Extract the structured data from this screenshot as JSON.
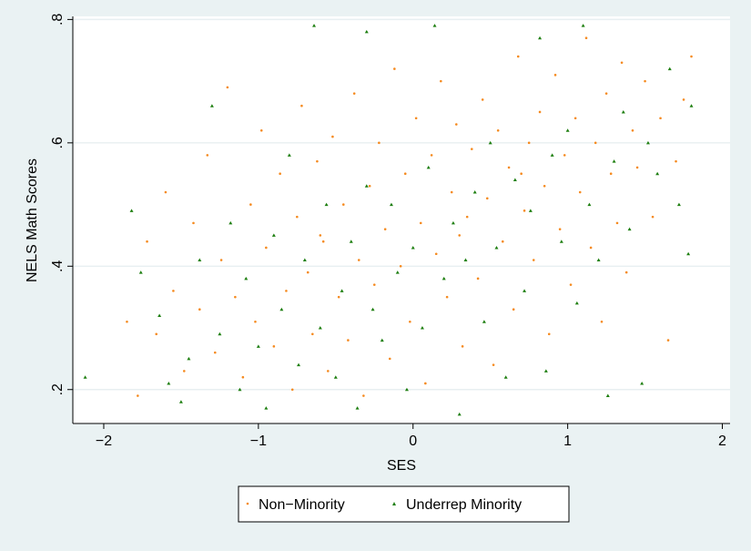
{
  "chart_data": {
    "type": "scatter",
    "xlabel": "SES",
    "ylabel": "NELS Math Scores",
    "xlim": [
      -2.2,
      2.05
    ],
    "ylim": [
      0.145,
      0.805
    ],
    "x_ticks": [
      -2,
      -1,
      0,
      1,
      2
    ],
    "x_tick_labels": [
      "−2",
      "−1",
      "0",
      "1",
      "2"
    ],
    "y_ticks": [
      0.2,
      0.4,
      0.6,
      0.8
    ],
    "y_tick_labels": [
      ".2",
      ".4",
      ".6",
      ".8"
    ],
    "grid": "horizontal",
    "legend_position": "bottom",
    "series": [
      {
        "name": "Non−Minority",
        "color": "#f58a1f",
        "marker": "dot",
        "points": [
          [
            -1.85,
            0.31
          ],
          [
            -1.78,
            0.19
          ],
          [
            -1.72,
            0.44
          ],
          [
            -1.66,
            0.29
          ],
          [
            -1.6,
            0.52
          ],
          [
            -1.55,
            0.36
          ],
          [
            -1.48,
            0.23
          ],
          [
            -1.42,
            0.47
          ],
          [
            -1.38,
            0.33
          ],
          [
            -1.33,
            0.58
          ],
          [
            -1.28,
            0.26
          ],
          [
            -1.24,
            0.41
          ],
          [
            -1.2,
            0.69
          ],
          [
            -1.15,
            0.35
          ],
          [
            -1.1,
            0.22
          ],
          [
            -1.05,
            0.5
          ],
          [
            -1.02,
            0.31
          ],
          [
            -0.98,
            0.62
          ],
          [
            -0.95,
            0.43
          ],
          [
            -0.9,
            0.27
          ],
          [
            -0.86,
            0.55
          ],
          [
            -0.82,
            0.36
          ],
          [
            -0.78,
            0.2
          ],
          [
            -0.75,
            0.48
          ],
          [
            -0.72,
            0.66
          ],
          [
            -0.68,
            0.39
          ],
          [
            -0.65,
            0.29
          ],
          [
            -0.62,
            0.57
          ],
          [
            -0.58,
            0.44
          ],
          [
            -0.55,
            0.23
          ],
          [
            -0.52,
            0.61
          ],
          [
            -0.48,
            0.35
          ],
          [
            -0.45,
            0.5
          ],
          [
            -0.42,
            0.28
          ],
          [
            -0.38,
            0.68
          ],
          [
            -0.35,
            0.41
          ],
          [
            -0.32,
            0.19
          ],
          [
            -0.28,
            0.53
          ],
          [
            -0.25,
            0.37
          ],
          [
            -0.22,
            0.6
          ],
          [
            -0.18,
            0.46
          ],
          [
            -0.15,
            0.25
          ],
          [
            -0.12,
            0.72
          ],
          [
            -0.08,
            0.4
          ],
          [
            -0.05,
            0.55
          ],
          [
            -0.02,
            0.31
          ],
          [
            0.02,
            0.64
          ],
          [
            0.05,
            0.47
          ],
          [
            0.08,
            0.21
          ],
          [
            0.12,
            0.58
          ],
          [
            0.15,
            0.42
          ],
          [
            0.18,
            0.7
          ],
          [
            0.22,
            0.35
          ],
          [
            0.25,
            0.52
          ],
          [
            0.28,
            0.63
          ],
          [
            0.32,
            0.27
          ],
          [
            0.35,
            0.48
          ],
          [
            0.38,
            0.59
          ],
          [
            0.42,
            0.38
          ],
          [
            0.45,
            0.67
          ],
          [
            0.48,
            0.51
          ],
          [
            0.52,
            0.24
          ],
          [
            0.55,
            0.62
          ],
          [
            0.58,
            0.44
          ],
          [
            0.62,
            0.56
          ],
          [
            0.65,
            0.33
          ],
          [
            0.68,
            0.74
          ],
          [
            0.72,
            0.49
          ],
          [
            0.75,
            0.6
          ],
          [
            0.78,
            0.41
          ],
          [
            0.82,
            0.65
          ],
          [
            0.85,
            0.53
          ],
          [
            0.88,
            0.29
          ],
          [
            0.92,
            0.71
          ],
          [
            0.95,
            0.46
          ],
          [
            0.98,
            0.58
          ],
          [
            1.02,
            0.37
          ],
          [
            1.05,
            0.64
          ],
          [
            1.08,
            0.52
          ],
          [
            1.12,
            0.77
          ],
          [
            1.15,
            0.43
          ],
          [
            1.18,
            0.6
          ],
          [
            1.22,
            0.31
          ],
          [
            1.25,
            0.68
          ],
          [
            1.28,
            0.55
          ],
          [
            1.32,
            0.47
          ],
          [
            1.35,
            0.73
          ],
          [
            1.38,
            0.39
          ],
          [
            1.42,
            0.62
          ],
          [
            1.45,
            0.56
          ],
          [
            1.5,
            0.7
          ],
          [
            1.55,
            0.48
          ],
          [
            1.6,
            0.64
          ],
          [
            1.65,
            0.28
          ],
          [
            1.7,
            0.57
          ],
          [
            1.75,
            0.67
          ],
          [
            1.8,
            0.74
          ],
          [
            -0.6,
            0.45
          ],
          [
            0.3,
            0.45
          ],
          [
            0.7,
            0.55
          ]
        ]
      },
      {
        "name": "Underrep Minority",
        "color": "#1e7f10",
        "marker": "triangle",
        "points": [
          [
            -2.12,
            0.22
          ],
          [
            -1.82,
            0.49
          ],
          [
            -1.76,
            0.39
          ],
          [
            -1.64,
            0.32
          ],
          [
            -1.58,
            0.21
          ],
          [
            -1.5,
            0.18
          ],
          [
            -1.45,
            0.25
          ],
          [
            -1.38,
            0.41
          ],
          [
            -1.3,
            0.66
          ],
          [
            -1.25,
            0.29
          ],
          [
            -1.18,
            0.47
          ],
          [
            -1.12,
            0.2
          ],
          [
            -1.08,
            0.38
          ],
          [
            -1.0,
            0.27
          ],
          [
            -0.95,
            0.17
          ],
          [
            -0.9,
            0.45
          ],
          [
            -0.85,
            0.33
          ],
          [
            -0.8,
            0.58
          ],
          [
            -0.74,
            0.24
          ],
          [
            -0.7,
            0.41
          ],
          [
            -0.64,
            0.79
          ],
          [
            -0.6,
            0.3
          ],
          [
            -0.56,
            0.5
          ],
          [
            -0.5,
            0.22
          ],
          [
            -0.46,
            0.36
          ],
          [
            -0.4,
            0.44
          ],
          [
            -0.36,
            0.17
          ],
          [
            -0.3,
            0.78
          ],
          [
            -0.26,
            0.33
          ],
          [
            -0.2,
            0.28
          ],
          [
            -0.14,
            0.5
          ],
          [
            -0.1,
            0.39
          ],
          [
            -0.04,
            0.2
          ],
          [
            0.0,
            0.43
          ],
          [
            0.06,
            0.3
          ],
          [
            0.1,
            0.56
          ],
          [
            0.14,
            0.79
          ],
          [
            0.2,
            0.38
          ],
          [
            0.26,
            0.47
          ],
          [
            0.3,
            0.16
          ],
          [
            0.34,
            0.41
          ],
          [
            0.4,
            0.52
          ],
          [
            0.46,
            0.31
          ],
          [
            0.5,
            0.6
          ],
          [
            0.54,
            0.43
          ],
          [
            0.6,
            0.22
          ],
          [
            0.66,
            0.54
          ],
          [
            0.72,
            0.36
          ],
          [
            0.76,
            0.49
          ],
          [
            0.82,
            0.77
          ],
          [
            0.86,
            0.23
          ],
          [
            0.9,
            0.58
          ],
          [
            0.96,
            0.44
          ],
          [
            1.0,
            0.62
          ],
          [
            1.06,
            0.34
          ],
          [
            1.1,
            0.79
          ],
          [
            1.14,
            0.5
          ],
          [
            1.2,
            0.41
          ],
          [
            1.26,
            0.19
          ],
          [
            1.3,
            0.57
          ],
          [
            1.36,
            0.65
          ],
          [
            1.4,
            0.46
          ],
          [
            1.48,
            0.21
          ],
          [
            1.52,
            0.6
          ],
          [
            1.58,
            0.55
          ],
          [
            1.66,
            0.72
          ],
          [
            1.72,
            0.5
          ],
          [
            1.78,
            0.42
          ],
          [
            1.8,
            0.66
          ],
          [
            -0.3,
            0.53
          ]
        ]
      }
    ]
  }
}
